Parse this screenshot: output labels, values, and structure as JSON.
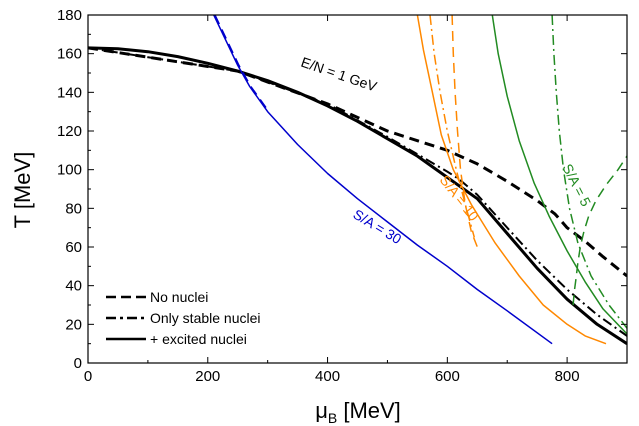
{
  "chart_data": {
    "type": "line",
    "title": "",
    "xlabel": "μ",
    "xlabel_sub": "B",
    "xlabel_unit": " [MeV]",
    "ylabel": "T [MeV]",
    "xlim": [
      0,
      900
    ],
    "ylim": [
      0,
      180
    ],
    "xticks": [
      0,
      200,
      400,
      600,
      800
    ],
    "yticks": [
      0,
      20,
      40,
      60,
      80,
      100,
      120,
      140,
      160,
      180
    ],
    "grid": false,
    "legend_position": "bottom-left",
    "legend": [
      {
        "label": "No nuclei",
        "style": "dashed"
      },
      {
        "label": "Only stable nuclei",
        "style": "dashdot"
      },
      {
        "label": "+ excited nuclei",
        "style": "solid"
      }
    ],
    "annotations": [
      {
        "text": "E/N = 1 GeV",
        "color": "#000000"
      },
      {
        "text": "S/A = 30",
        "color": "#0000cc"
      },
      {
        "text": "S/A = 10",
        "color": "#ff8800"
      },
      {
        "text": "S/A = 5",
        "color": "#228b22"
      }
    ],
    "colors": {
      "black": "#000000",
      "blue": "#0000cc",
      "orange": "#ff8800",
      "green": "#228b22"
    },
    "series": [
      {
        "group": "E/N = 1 GeV",
        "color": "#000000",
        "style": "solid",
        "width": 3,
        "x": [
          0,
          50,
          100,
          150,
          200,
          250,
          300,
          350,
          400,
          450,
          500,
          550,
          600,
          650,
          700,
          750,
          800,
          850,
          900
        ],
        "y": [
          163,
          162.5,
          161,
          158.5,
          155,
          151,
          146,
          140,
          133,
          125,
          116,
          107,
          96,
          85,
          67,
          49,
          33,
          20,
          10
        ]
      },
      {
        "group": "E/N = 1 GeV",
        "color": "#000000",
        "style": "dashdot",
        "width": 2,
        "x": [
          0,
          250,
          400,
          500,
          550,
          600,
          620,
          650,
          700,
          750,
          800,
          850,
          900
        ],
        "y": [
          163,
          151,
          134,
          117,
          108,
          99,
          95,
          87,
          70,
          53,
          38,
          25,
          14
        ]
      },
      {
        "group": "E/N = 1 GeV",
        "color": "#000000",
        "style": "dashed",
        "width": 3,
        "x": [
          0,
          250,
          400,
          500,
          550,
          600,
          650,
          700,
          750,
          780,
          800,
          830,
          860,
          900
        ],
        "y": [
          163,
          151,
          134,
          120,
          115,
          110,
          103,
          94,
          84,
          77,
          70,
          63,
          55,
          45
        ]
      },
      {
        "group": "S/A = 30",
        "color": "#0000cc",
        "style": "solid",
        "width": 1.5,
        "x": [
          210,
          230,
          250,
          270,
          300,
          350,
          400,
          450,
          500,
          550,
          600,
          650,
          700,
          775
        ],
        "y": [
          180,
          167,
          154,
          143,
          130,
          113,
          98,
          85,
          73,
          61,
          50,
          38,
          27,
          10
        ]
      },
      {
        "group": "S/A = 30",
        "color": "#0000cc",
        "style": "dashed",
        "width": 1.5,
        "x": [
          212,
          232,
          252,
          272,
          302
        ],
        "y": [
          180,
          167,
          154,
          143,
          130
        ]
      },
      {
        "group": "S/A = 10",
        "color": "#ff8800",
        "style": "solid",
        "width": 1.5,
        "x": [
          550,
          560,
          575,
          590,
          610,
          640,
          680,
          720,
          760,
          800,
          830,
          865
        ],
        "y": [
          180,
          162,
          140,
          118,
          100,
          82,
          62,
          45,
          30,
          20,
          14,
          10
        ]
      },
      {
        "group": "S/A = 10",
        "color": "#ff8800",
        "style": "dashdot",
        "width": 1.5,
        "x": [
          571,
          578,
          588,
          600,
          615,
          630,
          645
        ],
        "y": [
          180,
          160,
          140,
          120,
          100,
          82,
          65
        ]
      },
      {
        "group": "S/A = 10",
        "color": "#ff8800",
        "style": "dashed",
        "width": 1.5,
        "x": [
          608,
          610,
          613,
          617,
          622,
          630,
          640,
          650
        ],
        "y": [
          180,
          160,
          140,
          120,
          100,
          82,
          68,
          60
        ]
      },
      {
        "group": "S/A = 5",
        "color": "#228b22",
        "style": "solid",
        "width": 1.5,
        "x": [
          675,
          685,
          700,
          720,
          745,
          770,
          800,
          830,
          860,
          900
        ],
        "y": [
          180,
          160,
          138,
          115,
          93,
          76,
          58,
          42,
          28,
          15
        ]
      },
      {
        "group": "S/A = 5",
        "color": "#228b22",
        "style": "dashdot",
        "width": 1.5,
        "x": [
          775,
          778,
          782,
          787,
          794,
          804,
          818,
          840,
          870,
          900
        ],
        "y": [
          180,
          160,
          140,
          120,
          100,
          80,
          62,
          45,
          30,
          18
        ]
      },
      {
        "group": "S/A = 5",
        "color": "#228b22",
        "style": "dashed",
        "width": 1.5,
        "x": [
          810,
          812,
          815,
          818,
          822,
          828,
          836,
          848,
          865,
          885,
          900
        ],
        "y": [
          30,
          37,
          44,
          52,
          60,
          68,
          76,
          84,
          92,
          100,
          107
        ]
      }
    ]
  }
}
